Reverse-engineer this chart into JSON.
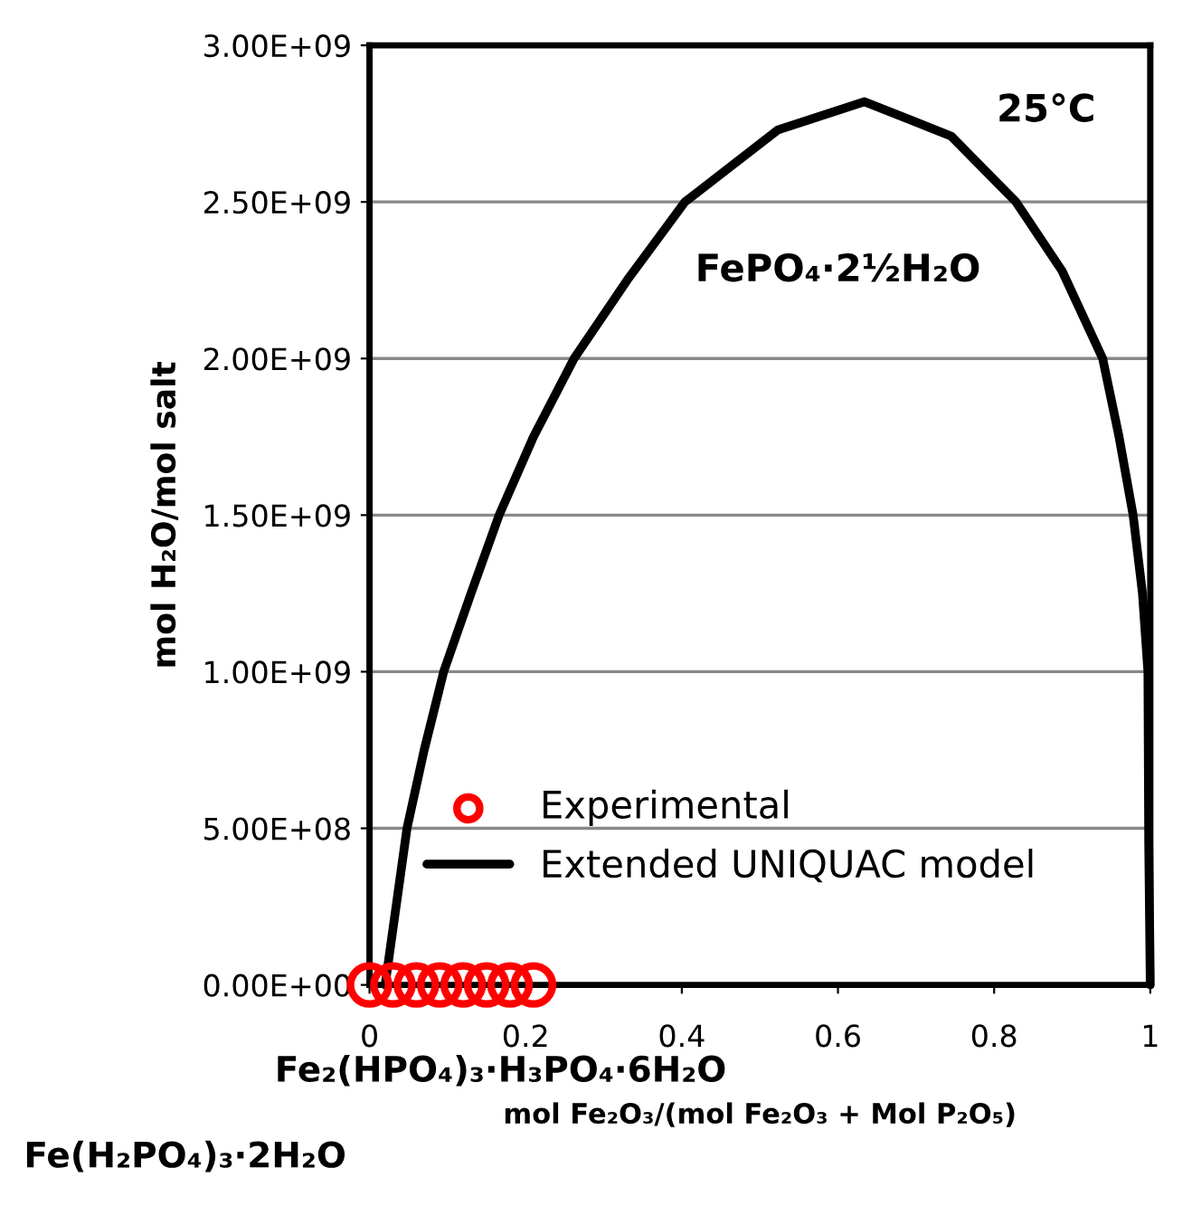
{
  "chart_data": {
    "type": "line",
    "xlabel": "mol Fe₂O₃/(mol Fe₂O₃ + Mol P₂O₅)",
    "ylabel": "mol H₂O/mol salt",
    "series": [
      {
        "name": "Experimental",
        "type": "scatter",
        "color": "#ff0000",
        "marker": "circle",
        "x": [
          0.0,
          0.03,
          0.06,
          0.09,
          0.12,
          0.15,
          0.18,
          0.21
        ],
        "values": [
          0,
          0,
          0,
          0,
          0,
          0,
          0,
          0
        ]
      },
      {
        "name": "Extended UNIQUAC model",
        "color": "#000000",
        "line_style": "solid",
        "x": [
          0.02,
          0.048,
          0.07,
          0.095,
          0.13,
          0.166,
          0.21,
          0.262,
          0.33,
          0.404,
          0.523,
          0.634,
          0.745,
          0.828,
          0.887,
          0.939,
          0.96,
          0.978,
          0.99,
          0.997,
          0.998,
          1.0
        ],
        "values": [
          0,
          500000000.0,
          750000000.0,
          1000000000.0,
          1250000000.0,
          1500000000.0,
          1750000000.0,
          2000000000.0,
          2250000000.0,
          2500000000.0,
          2730000000.0,
          2820000000.0,
          2710000000.0,
          2500000000.0,
          2280000000.0,
          2000000000.0,
          1750000000.0,
          1500000000.0,
          1250000000.0,
          1000000000.0,
          460000000.0,
          0
        ]
      }
    ],
    "xlim": [
      0,
      1
    ],
    "xticks": [
      0,
      0.2,
      0.4,
      0.6,
      0.8,
      1
    ],
    "ylim": [
      0,
      3000000000.0
    ],
    "yticks": [
      {
        "value": 0,
        "label": "0.00E+00"
      },
      {
        "value": 500000000.0,
        "label": "5.00E+08"
      },
      {
        "value": 1000000000.0,
        "label": "1.00E+09"
      },
      {
        "value": 1500000000.0,
        "label": "1.50E+09"
      },
      {
        "value": 2000000000.0,
        "label": "2.00E+09"
      },
      {
        "value": 2500000000.0,
        "label": "2.50E+09"
      },
      {
        "value": 3000000000.0,
        "label": "3.00E+09"
      }
    ],
    "grid": "y",
    "legend": "bottom left",
    "annotations": [
      "25°C",
      "FePO₄·2½H₂O",
      "Fe₂(HPO₄)₃·H₃PO₄·6H₂O",
      "Fe(H₂PO₄)₃·2H₂O"
    ]
  }
}
